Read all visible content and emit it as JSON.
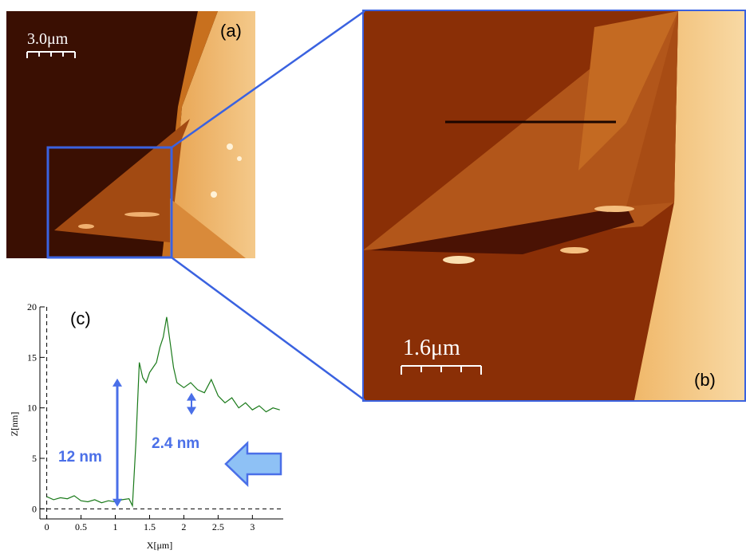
{
  "panel_a": {
    "tag": "(a)",
    "scale_bar": "3.0μm"
  },
  "panel_b": {
    "tag": "(b)",
    "scale_bar": "1.6μm"
  },
  "panel_c": {
    "tag": "(c)"
  },
  "colors": {
    "zoom_box": "#3a62e0",
    "trace": "#1a7a1a",
    "arrow": "#4a6fe8",
    "arrow_fill": "#8ec1f5"
  },
  "chart_data": {
    "type": "line",
    "xlabel": "X[μm]",
    "ylabel": "Z[nm]",
    "xlim": [
      -0.1,
      3.45
    ],
    "ylim": [
      -1,
      20
    ],
    "xticks": [
      "0",
      "0.5",
      "1",
      "1.5",
      "2",
      "2.5",
      "3"
    ],
    "yticks": [
      "0",
      "5",
      "10",
      "15",
      "20"
    ],
    "series": [
      {
        "x": [
          0.0,
          0.1,
          0.2,
          0.3,
          0.4,
          0.5,
          0.6,
          0.7,
          0.8,
          0.9,
          1.0,
          1.1,
          1.2,
          1.25,
          1.3,
          1.35,
          1.4,
          1.45,
          1.5,
          1.55,
          1.6,
          1.65,
          1.7,
          1.75,
          1.8,
          1.85,
          1.9,
          2.0,
          2.1,
          2.2,
          2.3,
          2.4,
          2.5,
          2.6,
          2.7,
          2.8,
          2.9,
          3.0,
          3.1,
          3.2,
          3.3,
          3.4
        ],
        "y": [
          1.2,
          0.9,
          1.1,
          1.0,
          1.3,
          0.8,
          0.7,
          0.9,
          0.6,
          0.8,
          0.7,
          0.9,
          1.0,
          0.3,
          6.5,
          14.5,
          13.0,
          12.5,
          13.5,
          14.0,
          14.5,
          16.0,
          17.0,
          19.0,
          16.5,
          14.0,
          12.5,
          12.0,
          12.5,
          11.8,
          11.5,
          12.8,
          11.2,
          10.5,
          11.0,
          10.0,
          10.5,
          9.8,
          10.2,
          9.6,
          10.0,
          9.8
        ]
      }
    ],
    "annotations": [
      "12 nm",
      "2.4 nm"
    ]
  }
}
